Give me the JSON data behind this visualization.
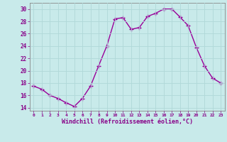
{
  "x": [
    0,
    1,
    2,
    3,
    4,
    5,
    6,
    7,
    8,
    9,
    10,
    11,
    12,
    13,
    14,
    15,
    16,
    17,
    18,
    19,
    20,
    21,
    22,
    23
  ],
  "y": [
    17.5,
    17.0,
    16.0,
    15.5,
    14.8,
    14.2,
    15.5,
    17.5,
    20.8,
    24.0,
    28.4,
    28.6,
    26.7,
    27.0,
    28.8,
    29.3,
    30.0,
    30.0,
    28.7,
    27.3,
    23.8,
    20.8,
    18.8,
    18.0
  ],
  "line_color": "#990099",
  "marker": "+",
  "marker_size": 4,
  "marker_linewidth": 1.0,
  "bg_color": "#c8eaea",
  "grid_color": "#b0d8d8",
  "xlabel": "Windchill (Refroidissement éolien,°C)",
  "xlabel_color": "#880088",
  "tick_color": "#880088",
  "axis_color": "#888888",
  "xlim": [
    -0.5,
    23.5
  ],
  "ylim": [
    13.5,
    31.0
  ],
  "yticks": [
    14,
    16,
    18,
    20,
    22,
    24,
    26,
    28,
    30
  ],
  "xticks": [
    0,
    1,
    2,
    3,
    4,
    5,
    6,
    7,
    8,
    9,
    10,
    11,
    12,
    13,
    14,
    15,
    16,
    17,
    18,
    19,
    20,
    21,
    22,
    23
  ],
  "line_width": 1.0
}
